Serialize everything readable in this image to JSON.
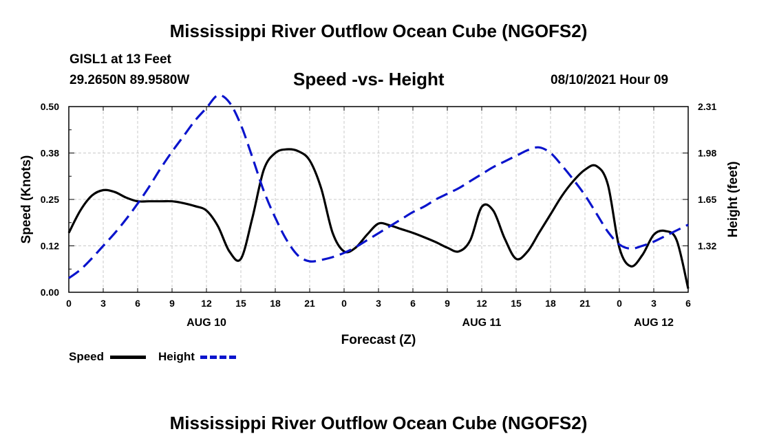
{
  "page": {
    "title_top": "Mississippi River Outflow Ocean Cube (NGOFS2)",
    "title_bottom": "Mississippi River Outflow Ocean Cube (NGOFS2)",
    "station": "GISL1 at 13 Feet",
    "location": "29.2650N  89.9580W",
    "datetime": "08/10/2021 Hour 09"
  },
  "chart_data": {
    "type": "line",
    "title": "Speed -vs- Height",
    "xlabel": "Forecast (Z)",
    "ylabel": "Speed (Knots)",
    "y2label": "Height (feet)",
    "x_ticks": [
      0,
      3,
      6,
      9,
      12,
      15,
      18,
      21,
      24,
      27,
      30,
      33,
      36,
      39,
      42,
      45,
      48,
      51,
      54
    ],
    "x_tick_labels": [
      "0",
      "3",
      "6",
      "9",
      "12",
      "15",
      "18",
      "21",
      "0",
      "3",
      "6",
      "9",
      "12",
      "15",
      "18",
      "21",
      "0",
      "3",
      "6"
    ],
    "date_labels": [
      {
        "hour": 12,
        "text": "AUG 10"
      },
      {
        "hour": 36,
        "text": "AUG 11"
      },
      {
        "hour": 51,
        "text": "AUG 12"
      }
    ],
    "xlim": [
      0,
      54
    ],
    "ylim": [
      0,
      0.5
    ],
    "y_ticks": [
      0.0,
      0.125,
      0.25,
      0.375,
      0.5
    ],
    "y_tick_labels": [
      "0.00",
      "0.12",
      "0.25",
      "0.38",
      "0.50"
    ],
    "y2lim": [
      0.99,
      2.31
    ],
    "y2_ticks": [
      1.32,
      1.65,
      1.98,
      2.31
    ],
    "y2_tick_labels": [
      "1.32",
      "1.65",
      "1.98",
      "2.31"
    ],
    "grid": true,
    "series": [
      {
        "name": "Speed",
        "axis": "left",
        "color": "#000000",
        "dash": "solid",
        "x": [
          0,
          1,
          2,
          3,
          4,
          5,
          6,
          7,
          8,
          9,
          10,
          11,
          12,
          13,
          14,
          15,
          16,
          17,
          18,
          19,
          20,
          21,
          22,
          23,
          24,
          25,
          26,
          27,
          28,
          29,
          30,
          31,
          32,
          33,
          34,
          35,
          36,
          37,
          38,
          39,
          40,
          41,
          42,
          43,
          44,
          45,
          46,
          47,
          48,
          49,
          50,
          51,
          52,
          53,
          54
        ],
        "values": [
          0.16,
          0.22,
          0.26,
          0.275,
          0.27,
          0.255,
          0.245,
          0.245,
          0.245,
          0.245,
          0.24,
          0.232,
          0.22,
          0.178,
          0.11,
          0.09,
          0.2,
          0.33,
          0.375,
          0.385,
          0.38,
          0.355,
          0.28,
          0.16,
          0.11,
          0.12,
          0.155,
          0.185,
          0.18,
          0.17,
          0.16,
          0.148,
          0.135,
          0.12,
          0.11,
          0.14,
          0.23,
          0.22,
          0.145,
          0.09,
          0.11,
          0.16,
          0.21,
          0.26,
          0.3,
          0.33,
          0.34,
          0.29,
          0.12,
          0.07,
          0.1,
          0.155,
          0.165,
          0.14,
          0.01
        ]
      },
      {
        "name": "Height",
        "axis": "right",
        "color": "#0a14cc",
        "dash": "dashed",
        "x": [
          0,
          1,
          2,
          3,
          4,
          5,
          6,
          7,
          8,
          9,
          10,
          11,
          12,
          13,
          14,
          15,
          16,
          17,
          18,
          19,
          20,
          21,
          22,
          23,
          24,
          25,
          26,
          27,
          28,
          29,
          30,
          31,
          32,
          33,
          34,
          35,
          36,
          37,
          38,
          39,
          40,
          41,
          42,
          43,
          44,
          45,
          46,
          47,
          48,
          49,
          50,
          51,
          52,
          53,
          54
        ],
        "values": [
          1.09,
          1.15,
          1.23,
          1.32,
          1.41,
          1.51,
          1.62,
          1.74,
          1.87,
          1.99,
          2.1,
          2.21,
          2.3,
          2.39,
          2.34,
          2.18,
          1.95,
          1.71,
          1.52,
          1.36,
          1.25,
          1.21,
          1.22,
          1.24,
          1.27,
          1.31,
          1.36,
          1.41,
          1.46,
          1.51,
          1.56,
          1.6,
          1.65,
          1.69,
          1.73,
          1.78,
          1.83,
          1.88,
          1.92,
          1.96,
          2.0,
          2.02,
          1.98,
          1.89,
          1.79,
          1.68,
          1.55,
          1.42,
          1.33,
          1.3,
          1.32,
          1.35,
          1.39,
          1.43,
          1.47
        ]
      }
    ],
    "legend": [
      {
        "label": "Speed",
        "color": "#000000",
        "dash": "solid"
      },
      {
        "label": "Height",
        "color": "#0a14cc",
        "dash": "dashed"
      }
    ]
  }
}
